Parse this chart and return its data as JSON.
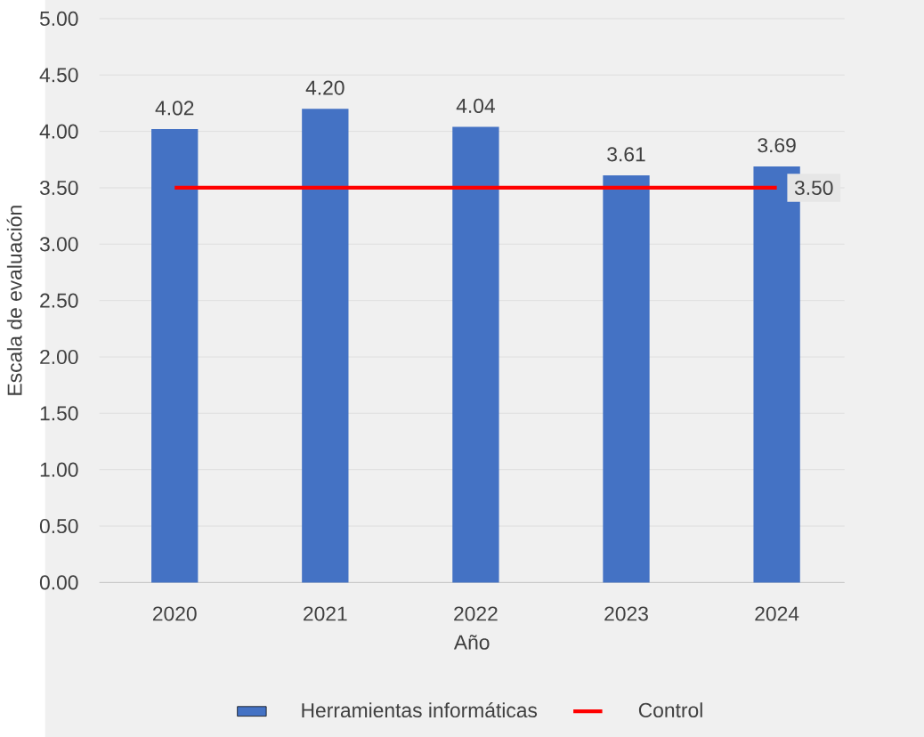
{
  "chart_data": {
    "type": "bar",
    "xlabel": "Año",
    "ylabel": "Escala de evaluación",
    "categories": [
      "2020",
      "2021",
      "2022",
      "2023",
      "2024"
    ],
    "series": [
      {
        "name": "Herramientas informáticas",
        "color": "#4472c4",
        "values": [
          4.02,
          4.2,
          4.04,
          3.61,
          3.69
        ],
        "value_labels": [
          "4.02",
          "4.20",
          "4.04",
          "3.61",
          "3.69"
        ]
      },
      {
        "name": "Control",
        "type": "line",
        "color": "#ff0000",
        "values": [
          3.5,
          3.5,
          3.5,
          3.5,
          3.5
        ],
        "value_labels": [
          null,
          null,
          null,
          null,
          "3.50"
        ]
      }
    ],
    "ylim": [
      0,
      5
    ],
    "yticks": [
      {
        "value": 0,
        "label": "0.00"
      },
      {
        "value": 0.5,
        "label": "0.50"
      },
      {
        "value": 1,
        "label": "1.00"
      },
      {
        "value": 1.5,
        "label": "1.50"
      },
      {
        "value": 2,
        "label": "2.00"
      },
      {
        "value": 2.5,
        "label": "2.50"
      },
      {
        "value": 3,
        "label": "3.00"
      },
      {
        "value": 3.5,
        "label": "3.50"
      },
      {
        "value": 4,
        "label": "4.00"
      },
      {
        "value": 4.5,
        "label": "4.50"
      },
      {
        "value": 5,
        "label": "5.00"
      }
    ],
    "grid": "y",
    "legend": "bottom",
    "marker": "none"
  }
}
